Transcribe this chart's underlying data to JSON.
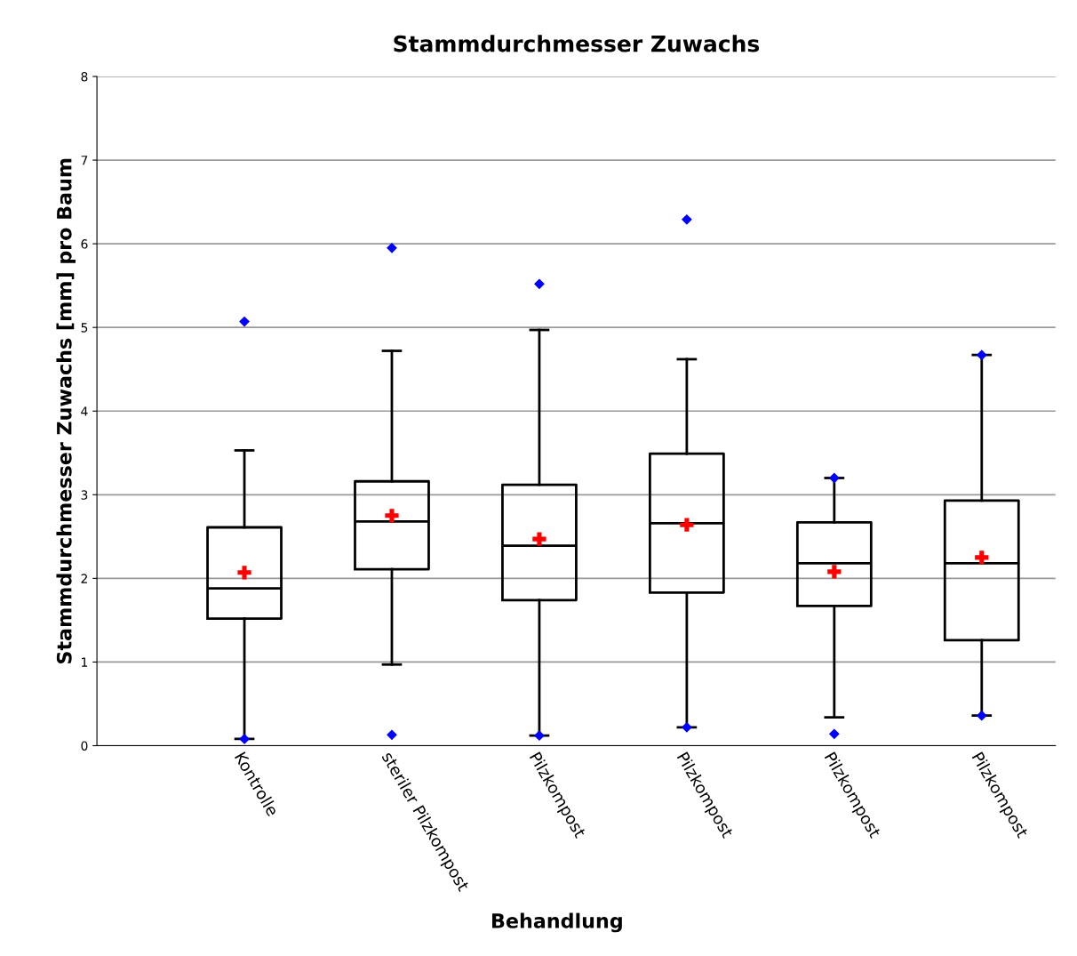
{
  "chart_data": {
    "type": "box",
    "title": "Stammdurchmesser Zuwachs",
    "xlabel": "Behandlung",
    "ylabel": "Stammdurchmesser Zuwachs [mm] pro Baum",
    "categories": [
      "Kontrolle",
      "steriler Pilzkompost",
      "Pilzkompost",
      "Pilzkompost",
      "Pilzkompost",
      "Pilzkompost"
    ],
    "boxes": [
      {
        "low": 0.08,
        "q1": 1.52,
        "median": 1.88,
        "q3": 2.61,
        "high": 3.53,
        "mean": 2.07,
        "outliers": [
          5.07,
          0.08
        ]
      },
      {
        "low": 0.97,
        "q1": 2.11,
        "median": 2.68,
        "q3": 3.16,
        "high": 4.72,
        "mean": 2.75,
        "outliers": [
          5.95,
          0.13
        ]
      },
      {
        "low": 0.12,
        "q1": 1.74,
        "median": 2.39,
        "q3": 3.12,
        "high": 4.97,
        "mean": 2.47,
        "outliers": [
          5.52,
          0.12
        ]
      },
      {
        "low": 0.22,
        "q1": 1.83,
        "median": 2.66,
        "q3": 3.49,
        "high": 4.62,
        "mean": 2.64,
        "outliers": [
          6.29,
          0.22
        ]
      },
      {
        "low": 0.34,
        "q1": 1.67,
        "median": 2.18,
        "q3": 2.67,
        "high": 3.2,
        "mean": 2.08,
        "outliers": [
          3.2,
          0.14
        ]
      },
      {
        "low": 0.36,
        "q1": 1.26,
        "median": 2.18,
        "q3": 2.93,
        "high": 4.67,
        "mean": 2.25,
        "outliers": [
          4.67,
          0.36
        ]
      }
    ],
    "ylim": [
      0,
      8
    ],
    "yticks": [
      0,
      1,
      2,
      3,
      4,
      5,
      6,
      7,
      8
    ],
    "grid": "y",
    "legend": false
  }
}
